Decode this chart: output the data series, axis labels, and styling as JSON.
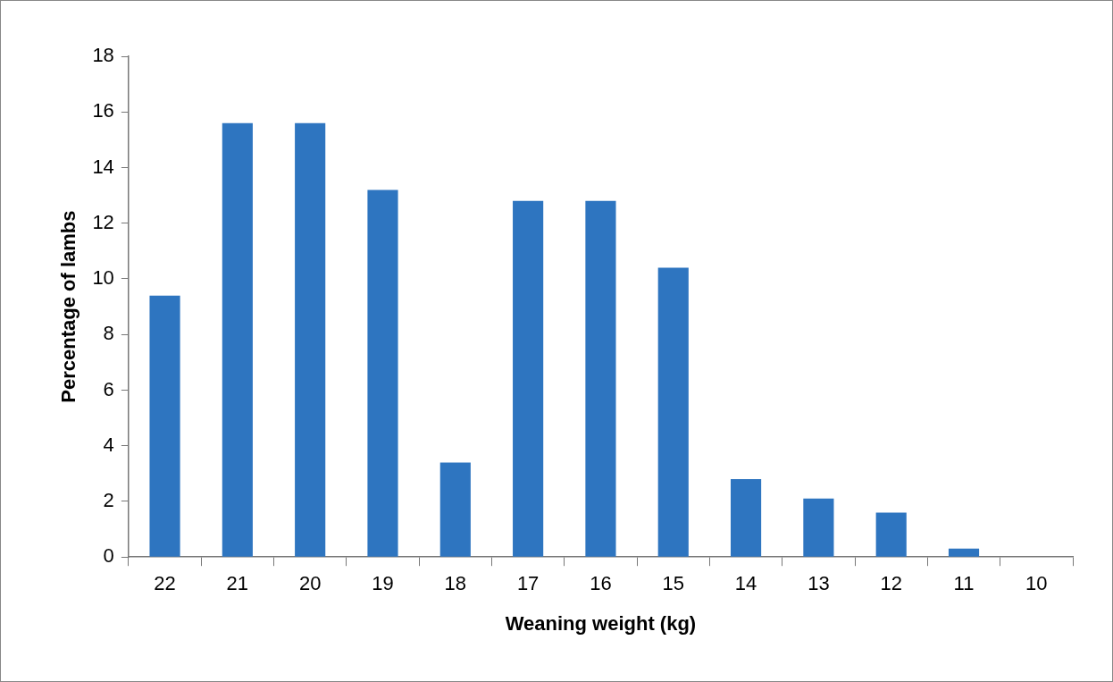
{
  "chart_data": {
    "type": "bar",
    "xlabel": "Weaning weight (kg)",
    "ylabel": "Percentage of lambs",
    "categories": [
      "22",
      "21",
      "20",
      "19",
      "18",
      "17",
      "16",
      "15",
      "14",
      "13",
      "12",
      "11",
      "10"
    ],
    "values": [
      9.4,
      15.6,
      15.6,
      13.2,
      3.4,
      12.8,
      12.8,
      10.4,
      2.8,
      2.1,
      1.6,
      0.3,
      0
    ],
    "color": "#2e75c0",
    "ylim": [
      0,
      18
    ],
    "yticks": [
      0,
      2,
      4,
      6,
      8,
      10,
      12,
      14,
      16,
      18
    ],
    "grid": false,
    "legend": false
  }
}
